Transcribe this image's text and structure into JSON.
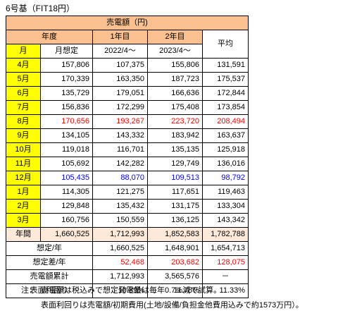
{
  "caption": "6号基（FIT18円）",
  "table": {
    "header_title": "売電額（円)",
    "h_year": "年度",
    "h_year1": "1年目",
    "h_year2": "2年目",
    "h_avg": "平均",
    "h_month": "月",
    "h_assumed": "月想定",
    "h_period1": "2022/4～",
    "h_period2": "2023/4～",
    "rows": [
      {
        "month": "4月",
        "assumed": "157,806",
        "y1": "107,375",
        "y2": "155,806",
        "avg": "131,591",
        "color": ""
      },
      {
        "month": "5月",
        "assumed": "170,339",
        "y1": "163,350",
        "y2": "187,723",
        "avg": "175,537",
        "color": ""
      },
      {
        "month": "6月",
        "assumed": "135,729",
        "y1": "179,051",
        "y2": "166,636",
        "avg": "172,844",
        "color": ""
      },
      {
        "month": "7月",
        "assumed": "156,836",
        "y1": "172,299",
        "y2": "175,408",
        "avg": "173,854",
        "color": ""
      },
      {
        "month": "8月",
        "assumed": "170,656",
        "y1": "193,267",
        "y2": "223,720",
        "avg": "208,494",
        "color": "red"
      },
      {
        "month": "9月",
        "assumed": "134,105",
        "y1": "143,332",
        "y2": "183,942",
        "avg": "163,637",
        "color": ""
      },
      {
        "month": "10月",
        "assumed": "119,018",
        "y1": "116,701",
        "y2": "135,135",
        "avg": "125,918",
        "color": ""
      },
      {
        "month": "11月",
        "assumed": "105,692",
        "y1": "142,282",
        "y2": "129,749",
        "avg": "136,016",
        "color": ""
      },
      {
        "month": "12月",
        "assumed": "105,435",
        "y1": "88,070",
        "y2": "109,513",
        "avg": "98,792",
        "color": "blue"
      },
      {
        "month": "1月",
        "assumed": "114,305",
        "y1": "121,275",
        "y2": "117,651",
        "avg": "119,463",
        "color": ""
      },
      {
        "month": "2月",
        "assumed": "129,848",
        "y1": "135,432",
        "y2": "131,175",
        "avg": "133,304",
        "color": ""
      },
      {
        "month": "3月",
        "assumed": "160,756",
        "y1": "150,559",
        "y2": "136,125",
        "avg": "143,342",
        "color": ""
      }
    ],
    "annual": {
      "label": "年間",
      "assumed": "1,660,525",
      "y1": "1,712,993",
      "y2": "1,852,583",
      "avg": "1,782,788"
    },
    "assumed_year": {
      "label": "想定/年",
      "y1": "1,660,525",
      "y2": "1,648,901",
      "avg": "1,654,713"
    },
    "diff_year": {
      "label": "想定差/年",
      "y1": "52,468",
      "y2": "203,682",
      "avg": "128,075"
    },
    "cumulative": {
      "label": "売電額累計",
      "y1": "1,712,993",
      "y2": "3,565,576",
      "avg": "－"
    },
    "yield": {
      "label": "表面利回り",
      "y1": "10.89%",
      "y2": "11.78%",
      "avg": "11.33%"
    }
  },
  "notes": {
    "label": "注：",
    "line1": "売電額は税込みで想定発電量は毎年0.7%減で試算。",
    "line2": "表面利回りは売電額/初期費用(土地/設備/負担金他費用込みで約1573万円）。"
  }
}
